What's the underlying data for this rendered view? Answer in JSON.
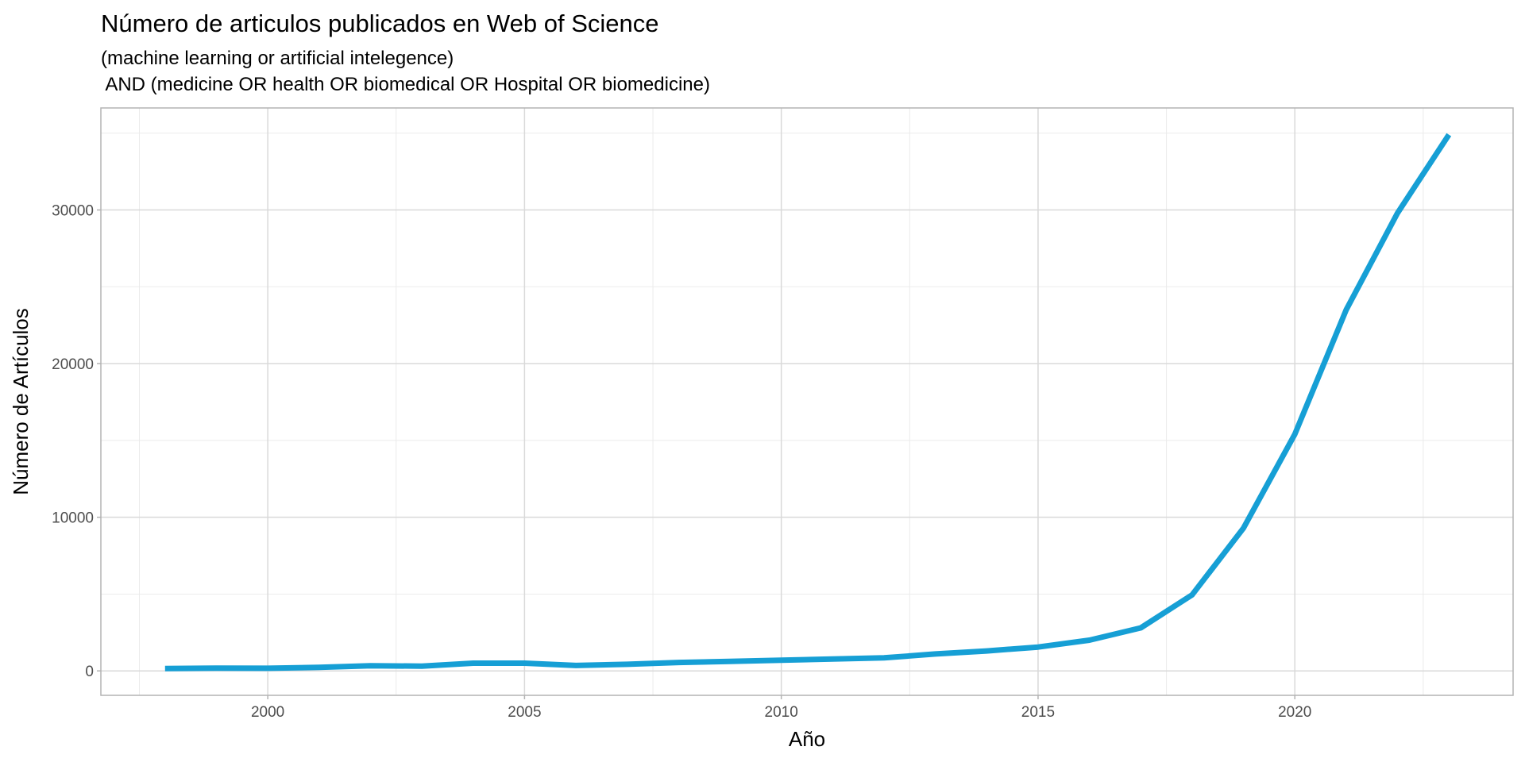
{
  "chart_data": {
    "type": "line",
    "title": "Número de articulos publicados en Web of Science",
    "subtitle_lines": [
      "(machine learning or artificial intelegence)",
      " AND (medicine OR health OR biomedical OR Hospital OR biomedicine)"
    ],
    "xlabel": "Año",
    "ylabel": "Número de Artículos",
    "x": [
      1998,
      1999,
      2000,
      2001,
      2002,
      2003,
      2004,
      2005,
      2006,
      2007,
      2008,
      2009,
      2010,
      2011,
      2012,
      2013,
      2014,
      2015,
      2016,
      2017,
      2018,
      2019,
      2020,
      2021,
      2022,
      2023
    ],
    "series": [
      {
        "values": [
          150,
          180,
          170,
          230,
          330,
          310,
          500,
          500,
          350,
          430,
          550,
          620,
          700,
          770,
          850,
          1100,
          1300,
          1550,
          2000,
          2800,
          4950,
          9300,
          15400,
          23500,
          29800,
          34900
        ],
        "color": "#169fd5"
      }
    ],
    "x_ticks": [
      "2000",
      "2005",
      "2010",
      "2015",
      "2020"
    ],
    "y_ticks": [
      "0",
      "10000",
      "20000",
      "30000"
    ],
    "xlim": [
      1996.75,
      2024.25
    ],
    "ylim": [
      -1590,
      36640
    ],
    "grid": true,
    "theme": "light"
  }
}
